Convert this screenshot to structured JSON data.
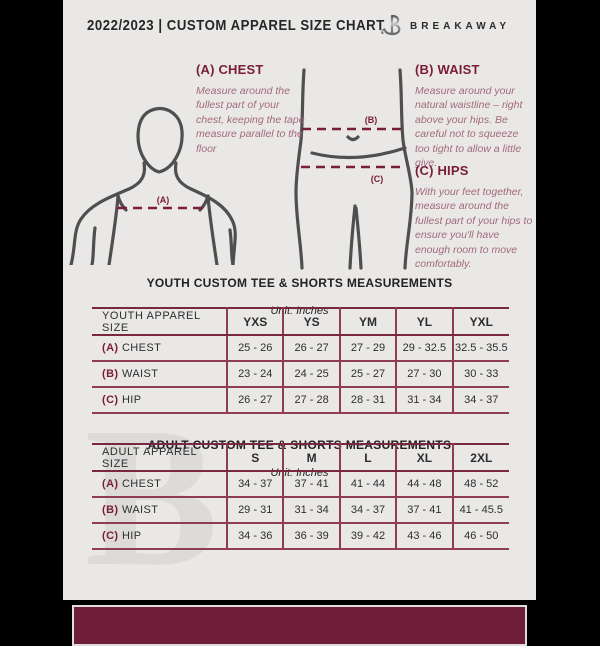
{
  "header": {
    "title": "2022/2023  |  CUSTOM APPAREL SIZE CHART",
    "brand": "BREAKAWAY",
    "logo_icon": "breakaway-b-logo"
  },
  "measurements": {
    "chest": {
      "title": "(A) CHEST",
      "diagram_label": "(A)",
      "description": "Measure around the fullest part of your chest, keeping the tape measure parallel to the floor"
    },
    "waist": {
      "title": "(B) WAIST",
      "diagram_label": "(B)",
      "description": "Measure around your natural waistline – right above your hips. Be careful not to squeeze too tight to allow a little give."
    },
    "hips": {
      "title": "(C) HIPS",
      "diagram_label": "(C)",
      "description": "With your feet together, measure around the fullest part of your hips to ensure you'll have enough room to move comfortably."
    }
  },
  "tables": [
    {
      "title": "YOUTH CUSTOM TEE & SHORTS MEASUREMENTS",
      "unit": "Unit: Inches",
      "header": [
        "YOUTH APPAREL SIZE",
        "YXS",
        "YS",
        "YM",
        "YL",
        "YXL"
      ],
      "rows": [
        {
          "label_prefix": "(A)",
          "label": "CHEST",
          "values": [
            "25 - 26",
            "26 - 27",
            "27 - 29",
            "29 - 32.5",
            "32.5 - 35.5"
          ]
        },
        {
          "label_prefix": "(B)",
          "label": "WAIST",
          "values": [
            "23 - 24",
            "24 - 25",
            "25 - 27",
            "27 - 30",
            "30 - 33"
          ]
        },
        {
          "label_prefix": "(C)",
          "label": "HIP",
          "values": [
            "26 - 27",
            "27 - 28",
            "28 - 31",
            "31 - 34",
            "34 - 37"
          ]
        }
      ]
    },
    {
      "title": "ADULT CUSTOM TEE & SHORTS MEASUREMENTS",
      "unit": "Unit: Inches",
      "header": [
        "ADULT APPAREL SIZE",
        "S",
        "M",
        "L",
        "XL",
        "2XL"
      ],
      "rows": [
        {
          "label_prefix": "(A)",
          "label": "CHEST",
          "values": [
            "34 - 37",
            "37 - 41",
            "41 - 44",
            "44 - 48",
            "48 - 52"
          ]
        },
        {
          "label_prefix": "(B)",
          "label": "WAIST",
          "values": [
            "29 - 31",
            "31 - 34",
            "34 - 37",
            "37 - 41",
            "41 - 45.5"
          ]
        },
        {
          "label_prefix": "(C)",
          "label": "HIP",
          "values": [
            "34 - 36",
            "36 - 39",
            "39 - 42",
            "43 - 46",
            "46 - 50"
          ]
        }
      ]
    }
  ],
  "watermark": "B",
  "colors": {
    "maroon": "#7a1c3a",
    "table_border_dark": "#7c2742",
    "table_border_mid": "#8f3b52",
    "footer": "#701d39",
    "page_bg": "#e9e8e6",
    "figure_stroke": "#4f4f4f",
    "description_text": "#a2697c"
  }
}
